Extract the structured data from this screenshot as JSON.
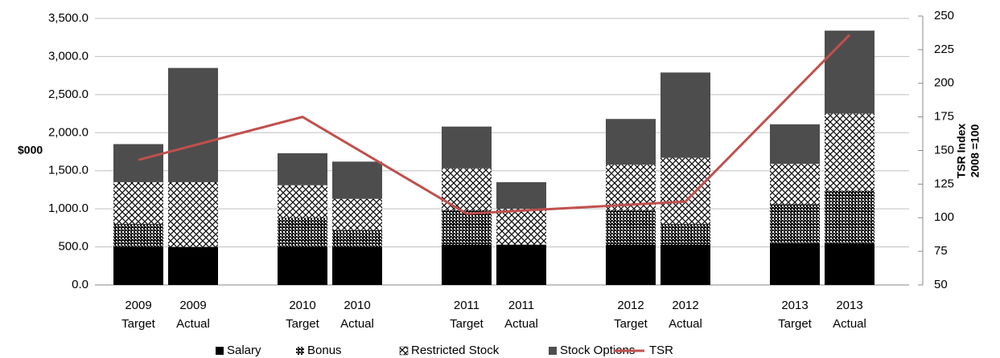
{
  "chart_data": {
    "type": "bar",
    "stacked": true,
    "ylabel": "$000",
    "y2label": [
      "TSR Index",
      "2008 =100"
    ],
    "categories": [
      "2009 Target",
      "2009 Actual",
      null,
      "2010 Target",
      "2010 Actual",
      null,
      "2011 Target",
      "2011 Actual",
      null,
      "2012 Target",
      "2012 Actual",
      null,
      "2013 Target",
      "2013 Actual"
    ],
    "series": [
      {
        "name": "Salary",
        "color": "#000000",
        "pattern": "solid",
        "values": [
          500,
          500,
          null,
          500,
          500,
          null,
          530,
          530,
          null,
          530,
          530,
          null,
          550,
          550
        ]
      },
      {
        "name": "Bonus",
        "color": "#000000",
        "pattern": "checker",
        "values": [
          300,
          0,
          null,
          380,
          220,
          null,
          450,
          0,
          null,
          450,
          270,
          null,
          510,
          690
        ]
      },
      {
        "name": "Restricted Stock",
        "color": "#000000",
        "pattern": "crosshatch",
        "values": [
          550,
          850,
          null,
          430,
          410,
          null,
          550,
          470,
          null,
          600,
          870,
          null,
          530,
          1010
        ]
      },
      {
        "name": "Stock Options",
        "color": "#4d4d4d",
        "pattern": "solid",
        "values": [
          500,
          1500,
          null,
          420,
          490,
          null,
          550,
          350,
          null,
          600,
          1120,
          null,
          520,
          1090
        ]
      },
      {
        "name": "TSR",
        "color": "#c0504d",
        "type": "line",
        "axis": "y2",
        "connect_gaps": true,
        "values": [
          143,
          null,
          null,
          175,
          null,
          null,
          103,
          null,
          null,
          null,
          112,
          null,
          null,
          236
        ]
      }
    ],
    "ylim": [
      0,
      3500
    ],
    "yticks": [
      {
        "value": 0,
        "label": "0.0"
      },
      {
        "value": 500,
        "label": "500.0"
      },
      {
        "value": 1000,
        "label": "1,000.0"
      },
      {
        "value": 1500,
        "label": "1,500.0"
      },
      {
        "value": 2000,
        "label": "2,000.0"
      },
      {
        "value": 2500,
        "label": "2,500.0"
      },
      {
        "value": 3000,
        "label": "3,000.0"
      },
      {
        "value": 3500,
        "label": "3,500.0"
      }
    ],
    "y2lim": [
      50,
      250
    ],
    "y2ticks": [
      50,
      75,
      100,
      125,
      150,
      175,
      200,
      225,
      250
    ],
    "grid": true,
    "legend": "bottom"
  }
}
